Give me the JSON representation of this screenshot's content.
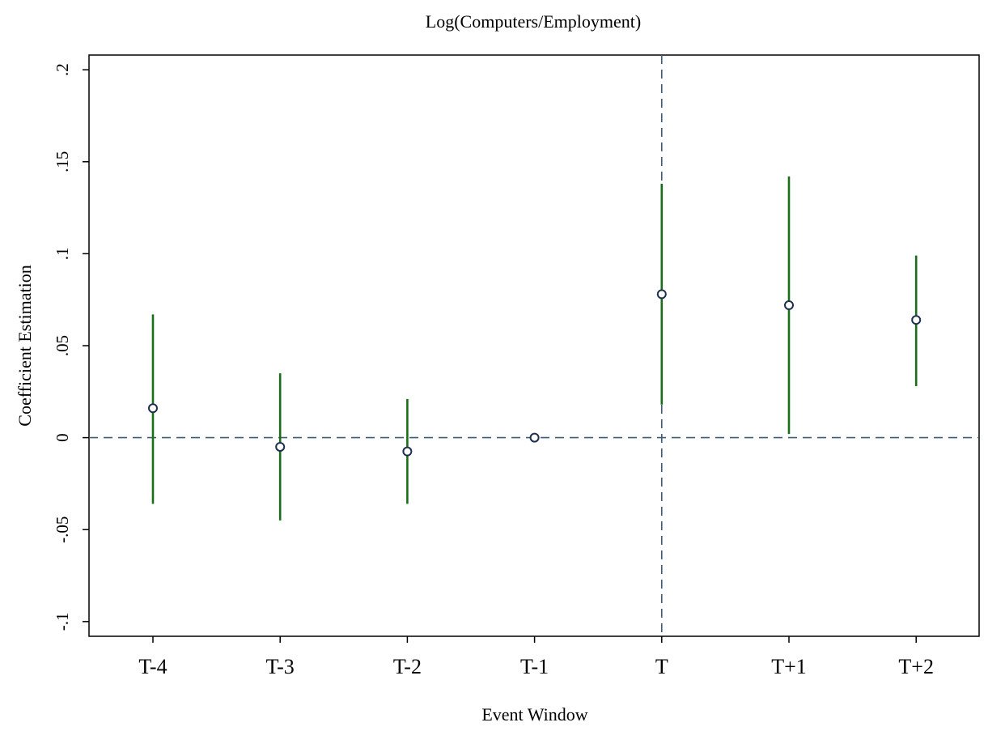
{
  "chart_data": {
    "type": "scatter",
    "title": "Log(Computers/Employment)",
    "xlabel": "Event Window",
    "ylabel": "Coefficient Estimation",
    "categories": [
      "T-4",
      "T-3",
      "T-2",
      "T-1",
      "T",
      "T+1",
      "T+2"
    ],
    "series": [
      {
        "estimates": [
          0.016,
          -0.005,
          -0.0075,
          0.0,
          0.078,
          0.072,
          0.064
        ],
        "ci_lower": [
          -0.036,
          -0.045,
          -0.036,
          0.0,
          0.018,
          0.002,
          0.028
        ],
        "ci_upper": [
          0.067,
          0.035,
          0.021,
          0.0,
          0.138,
          0.142,
          0.099
        ]
      }
    ],
    "ylim": [
      -0.108,
      0.208
    ],
    "yticks": [
      {
        "value": -0.1,
        "label": "-.1"
      },
      {
        "value": -0.05,
        "label": "-.05"
      },
      {
        "value": 0,
        "label": "0"
      },
      {
        "value": 0.05,
        "label": ".05"
      },
      {
        "value": 0.1,
        "label": ".1"
      },
      {
        "value": 0.15,
        "label": ".15"
      },
      {
        "value": 0.2,
        "label": ".2"
      }
    ],
    "reference_lines": {
      "horizontal_y": 0,
      "vertical_category": "T"
    },
    "grid": false,
    "colors": {
      "ci_line": "#1a6e1a",
      "marker": "#1f2f4f",
      "reference_line": "#3e5c78",
      "axis": "#000000"
    }
  }
}
